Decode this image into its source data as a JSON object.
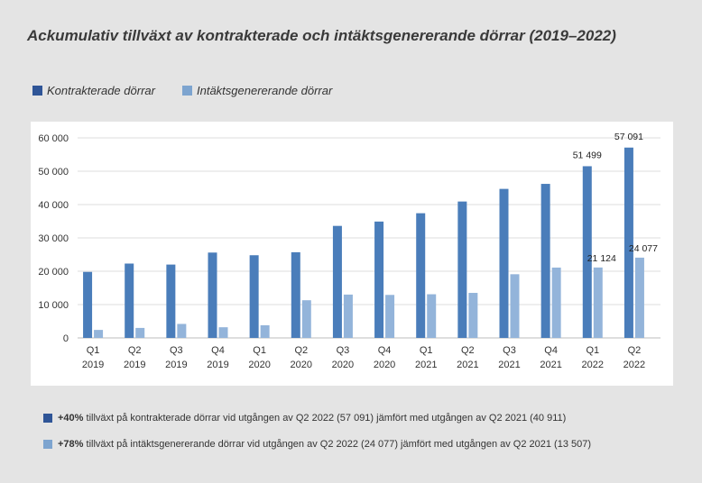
{
  "colors": {
    "series1": "#4a7dba",
    "series2": "#93b4da",
    "legend1": "#2f5597",
    "legend2": "#7da4cf"
  },
  "title": "Ackumulativ tillväxt av kontrakterade och intäktsgenererande dörrar (2019–2022)",
  "chart_data": {
    "type": "bar",
    "title": "Ackumulativ tillväxt av kontrakterade och intäktsgenererande dörrar (2019–2022)",
    "xlabel": "",
    "ylabel": "",
    "ylim": [
      0,
      60000
    ],
    "yticks": [
      0,
      10000,
      20000,
      30000,
      40000,
      50000,
      60000
    ],
    "ytick_labels": [
      "0",
      "10 000",
      "20 000",
      "30 000",
      "40 000",
      "50 000",
      "60 000"
    ],
    "grid": true,
    "legend_position": "top-left",
    "categories": [
      [
        "Q1",
        "2019"
      ],
      [
        "Q2",
        "2019"
      ],
      [
        "Q3",
        "2019"
      ],
      [
        "Q4",
        "2019"
      ],
      [
        "Q1",
        "2020"
      ],
      [
        "Q2",
        "2020"
      ],
      [
        "Q3",
        "2020"
      ],
      [
        "Q4",
        "2020"
      ],
      [
        "Q1",
        "2021"
      ],
      [
        "Q2",
        "2021"
      ],
      [
        "Q3",
        "2021"
      ],
      [
        "Q4",
        "2021"
      ],
      [
        "Q1",
        "2022"
      ],
      [
        "Q2",
        "2022"
      ]
    ],
    "series": [
      {
        "name": "Kontrakterade dörrar",
        "values": [
          19800,
          22300,
          22000,
          25600,
          24800,
          25700,
          33600,
          34900,
          37400,
          40911,
          44700,
          46200,
          51499,
          57091
        ],
        "labels": [
          "",
          "",
          "",
          "",
          "",
          "",
          "",
          "",
          "",
          "",
          "",
          "",
          "51 499",
          "57 091"
        ]
      },
      {
        "name": "Intäktsgenererande dörrar",
        "values": [
          2400,
          3000,
          4200,
          3200,
          3800,
          11300,
          13000,
          12900,
          13100,
          13507,
          19100,
          21100,
          21124,
          24077
        ],
        "labels": [
          "",
          "",
          "",
          "",
          "",
          "",
          "",
          "",
          "",
          "",
          "",
          "",
          "21 124",
          "24 077"
        ]
      }
    ]
  },
  "legend": [
    {
      "label": "Kontrakterade dörrar"
    },
    {
      "label": "Intäktsgenererande dörrar"
    }
  ],
  "notes": [
    {
      "bold": "+40%",
      "text": " tillväxt på kontrakterade dörrar vid utgången av Q2 2022 (57 091) jämfört med utgången av Q2 2021 (40 911)"
    },
    {
      "bold": "+78%",
      "text": " tillväxt på intäktsgenererande dörrar vid utgången av Q2 2022 (24 077) jämfört med utgången av Q2 2021 (13 507)"
    }
  ]
}
